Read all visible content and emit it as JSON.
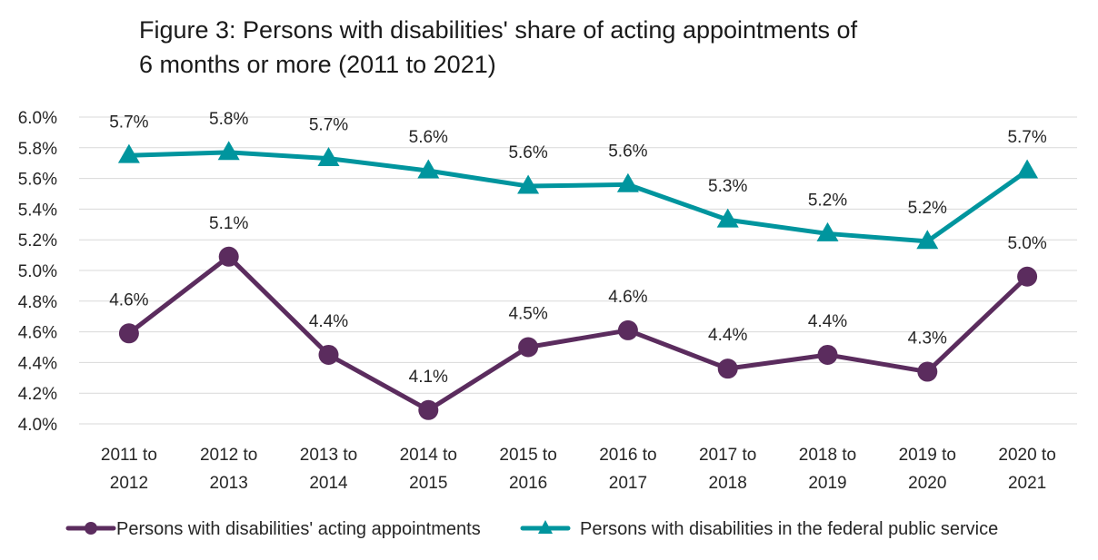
{
  "title_lines": [
    "Figure 3: Persons with disabilities' share of acting appointments of",
    "6 months or more (2011 to 2021)"
  ],
  "chart_data": {
    "type": "line",
    "categories": [
      [
        "2011 to",
        "2012"
      ],
      [
        "2012 to",
        "2013"
      ],
      [
        "2013 to",
        "2014"
      ],
      [
        "2014 to",
        "2015"
      ],
      [
        "2015 to",
        "2016"
      ],
      [
        "2016 to",
        "2017"
      ],
      [
        "2017 to",
        "2018"
      ],
      [
        "2018 to",
        "2019"
      ],
      [
        "2019 to",
        "2020"
      ],
      [
        "2020 to",
        "2021"
      ]
    ],
    "ylim": [
      4.0,
      6.0
    ],
    "ytick_step": 0.2,
    "ytick_labels": [
      "4.0%",
      "4.2%",
      "4.4%",
      "4.6%",
      "4.8%",
      "5.0%",
      "5.2%",
      "5.4%",
      "5.6%",
      "5.8%",
      "6.0%"
    ],
    "grid": true,
    "legend_position": "bottom",
    "series": [
      {
        "name": "Persons with disabilities' acting appointments",
        "color": "#5b2c5e",
        "marker": "circle",
        "values": [
          4.59,
          5.09,
          4.45,
          4.09,
          4.5,
          4.61,
          4.36,
          4.45,
          4.34,
          4.96
        ],
        "labels": [
          "4.6%",
          "5.1%",
          "4.4%",
          "4.1%",
          "4.5%",
          "4.6%",
          "4.4%",
          "4.4%",
          "4.3%",
          "5.0%"
        ]
      },
      {
        "name": "Persons with disabilities in the federal public service",
        "color": "#00959e",
        "marker": "triangle",
        "values": [
          5.75,
          5.77,
          5.73,
          5.65,
          5.55,
          5.56,
          5.33,
          5.24,
          5.19,
          5.65
        ],
        "labels": [
          "5.7%",
          "5.8%",
          "5.7%",
          "5.6%",
          "5.6%",
          "5.6%",
          "5.3%",
          "5.2%",
          "5.2%",
          "5.7%"
        ]
      }
    ]
  }
}
